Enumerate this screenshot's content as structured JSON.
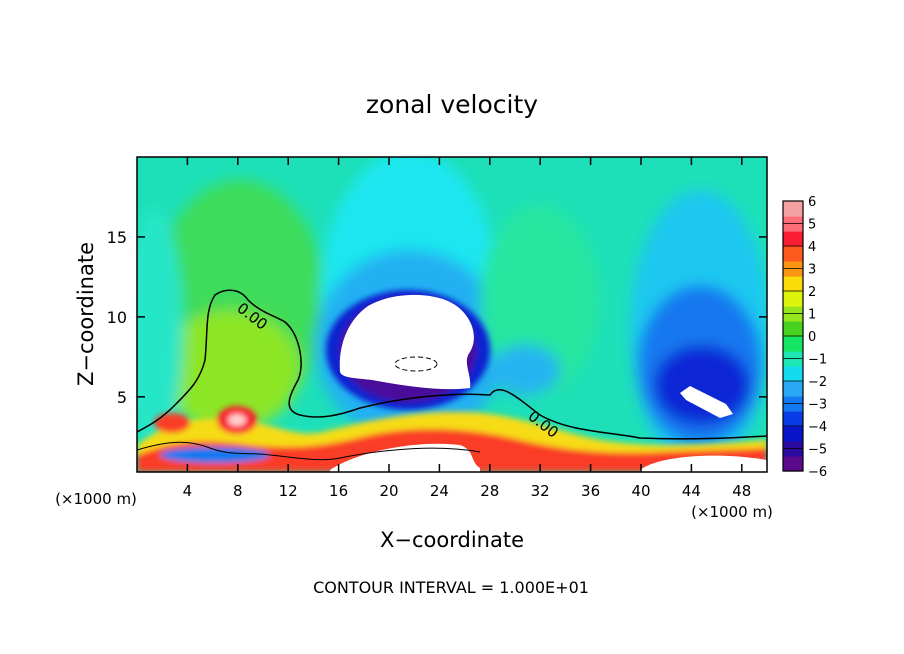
{
  "chart_data": {
    "type": "heatmap",
    "title": "zonal velocity",
    "xlabel": "X−coordinate",
    "ylabel": "Z−coordinate",
    "x_unit_left": "(×1000 m)",
    "x_unit_right": "(×1000 m)",
    "xlim": [
      0,
      50
    ],
    "ylim": [
      0.3,
      20
    ],
    "xticks": [
      4,
      8,
      12,
      16,
      20,
      24,
      28,
      32,
      36,
      40,
      44,
      48
    ],
    "xtick_labels": [
      "4",
      "8",
      "12",
      "16",
      "20",
      "24",
      "28",
      "32",
      "36",
      "40",
      "44",
      "48"
    ],
    "yticks": [
      5,
      10,
      15
    ],
    "ytick_labels": [
      "5",
      "10",
      "15"
    ],
    "colorbar": {
      "range": [
        -6,
        6
      ],
      "ticks": [
        6,
        5,
        4,
        3,
        2,
        1,
        0,
        -1,
        -2,
        -3,
        -4,
        -5,
        -6
      ],
      "tick_labels": [
        "6",
        "5",
        "4",
        "3",
        "2",
        "1",
        "0",
        "−1",
        "−2",
        "−3",
        "−4",
        "−5",
        "−6"
      ],
      "colors": [
        "#5a0a8a",
        "#2c0aa0",
        "#0a14c8",
        "#0a3ce6",
        "#1478f0",
        "#28a8f5",
        "#14dcf0",
        "#1ee6b4",
        "#14e664",
        "#46d21e",
        "#96e61e",
        "#dcf50a",
        "#fadc0a",
        "#fa9614",
        "#ff5a1e",
        "#fa1e32",
        "#ff6e78",
        "#f5a0a0"
      ]
    },
    "features": [
      {
        "kind": "saturated_low",
        "label": "< −6",
        "x": 21.5,
        "z": 7.5
      },
      {
        "kind": "saturated_low",
        "label": "< −6",
        "x": 45,
        "z": 4.3
      },
      {
        "kind": "saturated_high",
        "label": "> 6",
        "x": 23,
        "z": 1.0
      },
      {
        "kind": "jet_high",
        "x": 8,
        "z": 3.3
      },
      {
        "kind": "jet_high",
        "x": 2,
        "z": 3.0
      }
    ],
    "contour_labels": [
      "0.00",
      "0.00"
    ],
    "footnote": "CONTOUR INTERVAL = 1.000E+01"
  }
}
